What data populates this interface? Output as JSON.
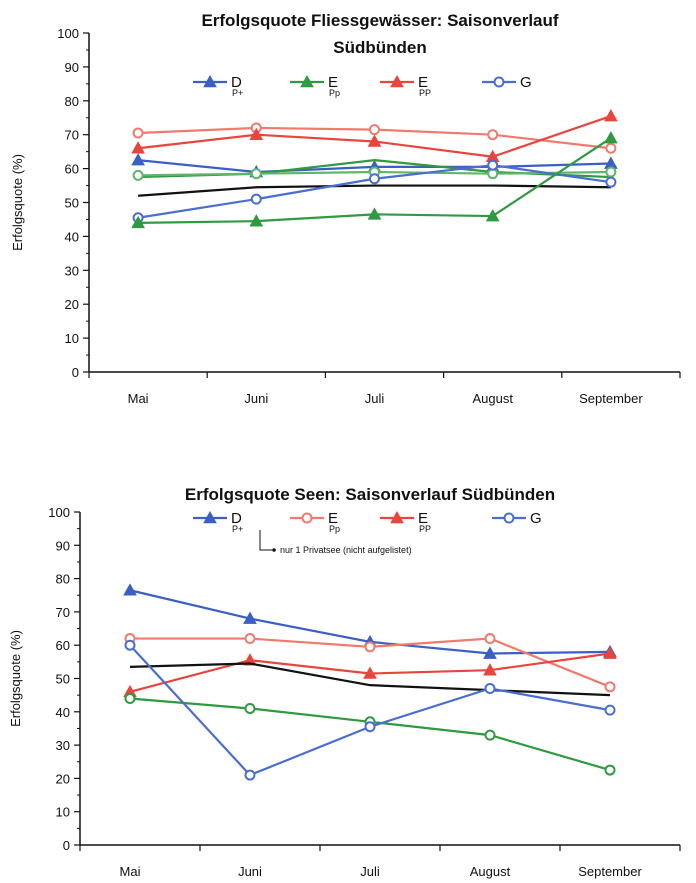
{
  "colors": {
    "D": "#3b5fc4",
    "E_red": "#e8453c",
    "E_pink": "#f07a6e",
    "E_green": "#2f9a40",
    "light_green": "#5fb56a",
    "G": "#4a6ed0",
    "black": "#111111"
  },
  "chart_data": [
    {
      "type": "line",
      "title": "Erfolgsquote Fliessgewässer: Saisonverlauf Südbünden",
      "ylabel": "Erfolgsquote (%)",
      "ylim": [
        0,
        100
      ],
      "yticks": [
        "0",
        "10",
        "20",
        "30",
        "40",
        "50",
        "60",
        "70",
        "80",
        "90",
        "100"
      ],
      "categories": [
        "Mai",
        "Juni",
        "Juli",
        "August",
        "September"
      ],
      "legend": [
        {
          "label": "D",
          "sub": "P+",
          "color": "#3b5fc4",
          "marker": "triangle"
        },
        {
          "label": "E",
          "sub": "Pp",
          "color": "#2f9a40",
          "marker": "triangle"
        },
        {
          "label": "E",
          "sub": "PP",
          "color": "#e8453c",
          "marker": "triangle"
        },
        {
          "label": "G",
          "sub": "",
          "color": "#4a6ed0",
          "marker": "circle-open"
        }
      ],
      "series": [
        {
          "color": "#f07a6e",
          "marker": "circle-open",
          "values": [
            70.5,
            72,
            71.5,
            70,
            66
          ]
        },
        {
          "color": "#e8453c",
          "marker": "triangle",
          "values": [
            66,
            70,
            68,
            63.5,
            75.5
          ]
        },
        {
          "color": "#3b5fc4",
          "marker": "triangle",
          "values": [
            62.5,
            59,
            60.5,
            60.5,
            61.5
          ]
        },
        {
          "color": "#2f9a40",
          "marker": "none",
          "values": [
            57.5,
            58.5,
            62.5,
            59,
            57.5
          ]
        },
        {
          "color": "#5fb56a",
          "marker": "circle-open",
          "values": [
            58,
            58.5,
            59,
            58.5,
            59
          ]
        },
        {
          "color": "#111111",
          "marker": "none",
          "values": [
            52,
            54.5,
            55,
            55,
            54.5
          ]
        },
        {
          "color": "#4a6ed0",
          "marker": "circle-open",
          "values": [
            45.5,
            51,
            57,
            61,
            56
          ]
        },
        {
          "color": "#2f9a40",
          "marker": "triangle",
          "values": [
            44,
            44.5,
            46.5,
            46,
            69
          ]
        }
      ]
    },
    {
      "type": "line",
      "title": "Erfolgsquote Seen: Saisonverlauf Südbünden",
      "ylabel": "Erfolgsquote (%)",
      "ylim": [
        0,
        100
      ],
      "yticks": [
        "0",
        "10",
        "20",
        "30",
        "40",
        "50",
        "60",
        "70",
        "80",
        "90",
        "100"
      ],
      "categories": [
        "Mai",
        "Juni",
        "Juli",
        "August",
        "September"
      ],
      "legend": [
        {
          "label": "D",
          "sub": "P+",
          "color": "#3b5fc4",
          "marker": "triangle"
        },
        {
          "label": "E",
          "sub": "Pp",
          "color": "#f07a6e",
          "marker": "circle-open"
        },
        {
          "label": "E",
          "sub": "PP",
          "color": "#e8453c",
          "marker": "triangle"
        },
        {
          "label": "G",
          "sub": "",
          "color": "#4a6ed0",
          "marker": "circle-open"
        }
      ],
      "note": "nur 1 Privatsee (nicht aufgelistet)",
      "series": [
        {
          "color": "#3b5fc4",
          "marker": "triangle",
          "values": [
            76.5,
            68,
            61,
            57.5,
            58
          ]
        },
        {
          "color": "#f07a6e",
          "marker": "circle-open",
          "values": [
            62,
            62,
            59.5,
            62,
            47.5
          ]
        },
        {
          "color": "#e8453c",
          "marker": "triangle",
          "values": [
            46,
            55.5,
            51.5,
            52.5,
            57.5
          ]
        },
        {
          "color": "#111111",
          "marker": "none",
          "values": [
            53.5,
            54.5,
            48,
            46.5,
            45
          ]
        },
        {
          "color": "#2f9a40",
          "marker": "circle-open",
          "values": [
            44,
            41,
            37,
            33,
            22.5
          ]
        },
        {
          "color": "#4a6ed0",
          "marker": "circle-open",
          "values": [
            60,
            21,
            35.5,
            47,
            40.5
          ]
        }
      ]
    }
  ]
}
